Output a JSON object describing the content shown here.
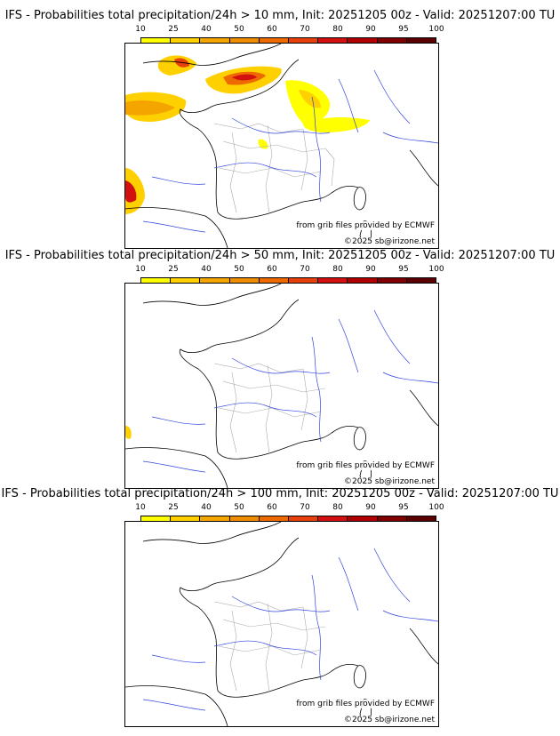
{
  "colorbar": {
    "ticks": [
      "10",
      "25",
      "40",
      "50",
      "60",
      "70",
      "80",
      "90",
      "95",
      "100"
    ],
    "colors": [
      "#ffff00",
      "#ffd000",
      "#f5a500",
      "#f08c00",
      "#ee6a00",
      "#e8400c",
      "#d21010",
      "#b00000",
      "#800000",
      "#5a0000"
    ]
  },
  "panels": [
    {
      "title": "IFS - Probabilities total precipitation/24h > 10 mm, Init: 20251205 00z - Valid: 20251207:00 TU",
      "source": "from grib files provided by ECMWF",
      "copyright": "©2025 sb@irizone.net"
    },
    {
      "title": "IFS - Probabilities total precipitation/24h > 50 mm, Init: 20251205 00z - Valid: 20251207:00 TU",
      "source": "from grib files provided by ECMWF",
      "copyright": "©2025 sb@irizone.net"
    },
    {
      "title": "IFS - Probabilities total precipitation/24h > 100 mm, Init: 20251205 00z - Valid: 20251207:00 TU",
      "source": "from grib files provided by ECMWF",
      "copyright": "©2025 sb@irizone.net"
    }
  ],
  "colors": {
    "coast": "#000000",
    "rivers": "#3344dd",
    "borders": "#aaaaaa"
  }
}
